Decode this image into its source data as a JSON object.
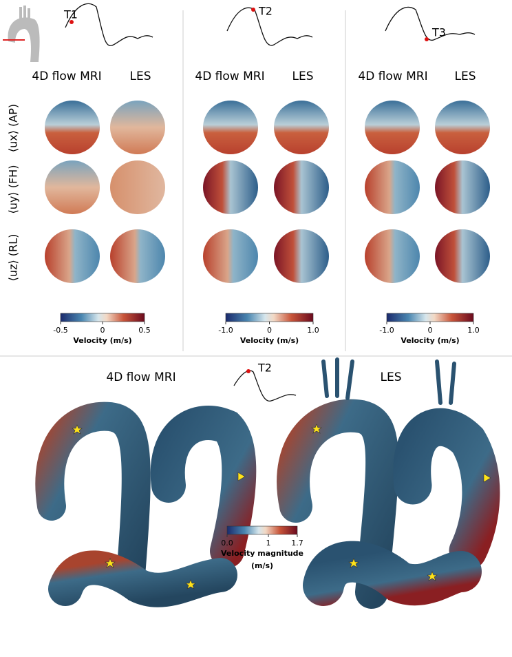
{
  "top": {
    "row_labels": [
      "⟨ux⟩ (AP)",
      "⟨uy⟩ (FH)",
      "⟨uz⟩ (RL)"
    ],
    "panels": [
      {
        "time": "T1",
        "columns": [
          "4D flow MRI",
          "LES"
        ],
        "colorbar": {
          "lim": [
            -0.5,
            0.5
          ],
          "ticks": [
            -0.5,
            0,
            0.5
          ],
          "label": "Velocity (m/s)"
        }
      },
      {
        "time": "T2",
        "columns": [
          "4D flow MRI",
          "LES"
        ],
        "colorbar": {
          "lim": [
            -1,
            1
          ],
          "ticks": [
            {
              "value": -1,
              "label": "-1.0"
            },
            0,
            {
              "value": 1,
              "label": "1.0"
            }
          ],
          "label": "Velocity (m/s)"
        }
      },
      {
        "time": "T3",
        "columns": [
          "4D flow MRI",
          "LES"
        ],
        "colorbar": {
          "lim": [
            -1,
            1
          ],
          "ticks": [
            {
              "value": -1,
              "label": "-1.0"
            },
            0,
            {
              "value": 1,
              "label": "1.0"
            }
          ],
          "label": "Velocity (m/s)"
        }
      }
    ]
  },
  "bottom": {
    "time": "T2",
    "columns": [
      "4D flow MRI",
      "LES"
    ],
    "colorbar": {
      "lim": [
        0,
        1.7
      ],
      "ticks": [
        {
          "value": 0,
          "label": "0.0"
        },
        1,
        1.7
      ],
      "label": "Velocity magnitude",
      "unit": "(m/s)"
    }
  }
}
